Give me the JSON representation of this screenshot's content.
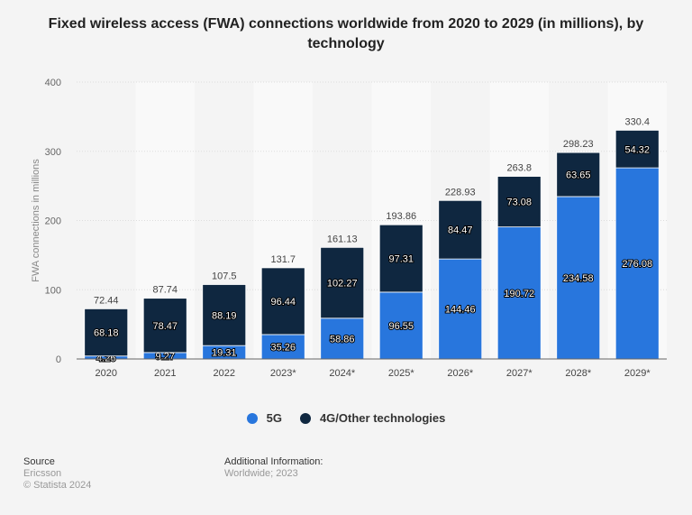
{
  "chart_data": {
    "type": "bar",
    "stacked": true,
    "title": "Fixed wireless access (FWA) connections worldwide from 2020 to 2029 (in millions), by technology",
    "xlabel": "",
    "ylabel": "FWA connections in millions",
    "ylim": [
      0,
      400
    ],
    "yticks": [
      "0",
      "100",
      "200",
      "300",
      "400"
    ],
    "grid": true,
    "legend_position": "bottom",
    "categories": [
      "2020",
      "2021",
      "2022",
      "2023*",
      "2024*",
      "2025*",
      "2026*",
      "2027*",
      "2028*",
      "2029*"
    ],
    "series": [
      {
        "name": "5G",
        "color": "#2876dd",
        "values": [
          4.26,
          9.27,
          19.31,
          35.26,
          58.86,
          96.55,
          144.46,
          190.72,
          234.58,
          276.08
        ]
      },
      {
        "name": "4G/Other technologies",
        "color": "#0f2740",
        "values": [
          68.18,
          78.47,
          88.19,
          96.44,
          102.27,
          97.31,
          84.47,
          73.08,
          63.65,
          54.32
        ]
      }
    ],
    "totals": [
      "72.44",
      "87.74",
      "107.5",
      "131.7",
      "161.13",
      "193.86",
      "228.93",
      "263.8",
      "298.23",
      "330.4"
    ]
  },
  "footer": {
    "source_label": "Source",
    "source": "Ericsson",
    "copyright": "© Statista 2024",
    "info_label": "Additional Information:",
    "info": "Worldwide; 2023"
  }
}
